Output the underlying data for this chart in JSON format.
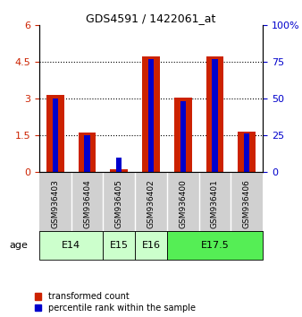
{
  "title": "GDS4591 / 1422061_at",
  "samples": [
    "GSM936403",
    "GSM936404",
    "GSM936405",
    "GSM936402",
    "GSM936400",
    "GSM936401",
    "GSM936406"
  ],
  "transformed_counts": [
    3.15,
    1.6,
    0.12,
    4.72,
    3.05,
    4.74,
    1.65
  ],
  "percentile_ranks_scaled": [
    3.0,
    1.5,
    0.6,
    4.62,
    2.88,
    4.62,
    1.56
  ],
  "ylim_left": [
    0,
    6
  ],
  "yticks_left": [
    0,
    1.5,
    3.0,
    4.5,
    6
  ],
  "ytick_labels_left": [
    "0",
    "1.5",
    "3",
    "4.5",
    "6"
  ],
  "yticks_right": [
    0,
    25,
    50,
    75,
    100
  ],
  "ytick_labels_right": [
    "0",
    "25",
    "50",
    "75",
    "100%"
  ],
  "bar_color_red": "#cc2200",
  "bar_color_blue": "#0000cc",
  "red_bar_width": 0.55,
  "blue_bar_width": 0.18,
  "age_groups": [
    {
      "label": "E14",
      "start": 0,
      "end": 1,
      "color": "#ccffcc"
    },
    {
      "label": "E15",
      "start": 2,
      "end": 2,
      "color": "#ccffcc"
    },
    {
      "label": "E16",
      "start": 3,
      "end": 3,
      "color": "#ccffcc"
    },
    {
      "label": "E17.5",
      "start": 4,
      "end": 6,
      "color": "#55ee55"
    }
  ],
  "sample_bg_color": "#d0d0d0",
  "legend_red_label": "transformed count",
  "legend_blue_label": "percentile rank within the sample",
  "grid_color": "black",
  "bg_color": "#f0f0f0"
}
